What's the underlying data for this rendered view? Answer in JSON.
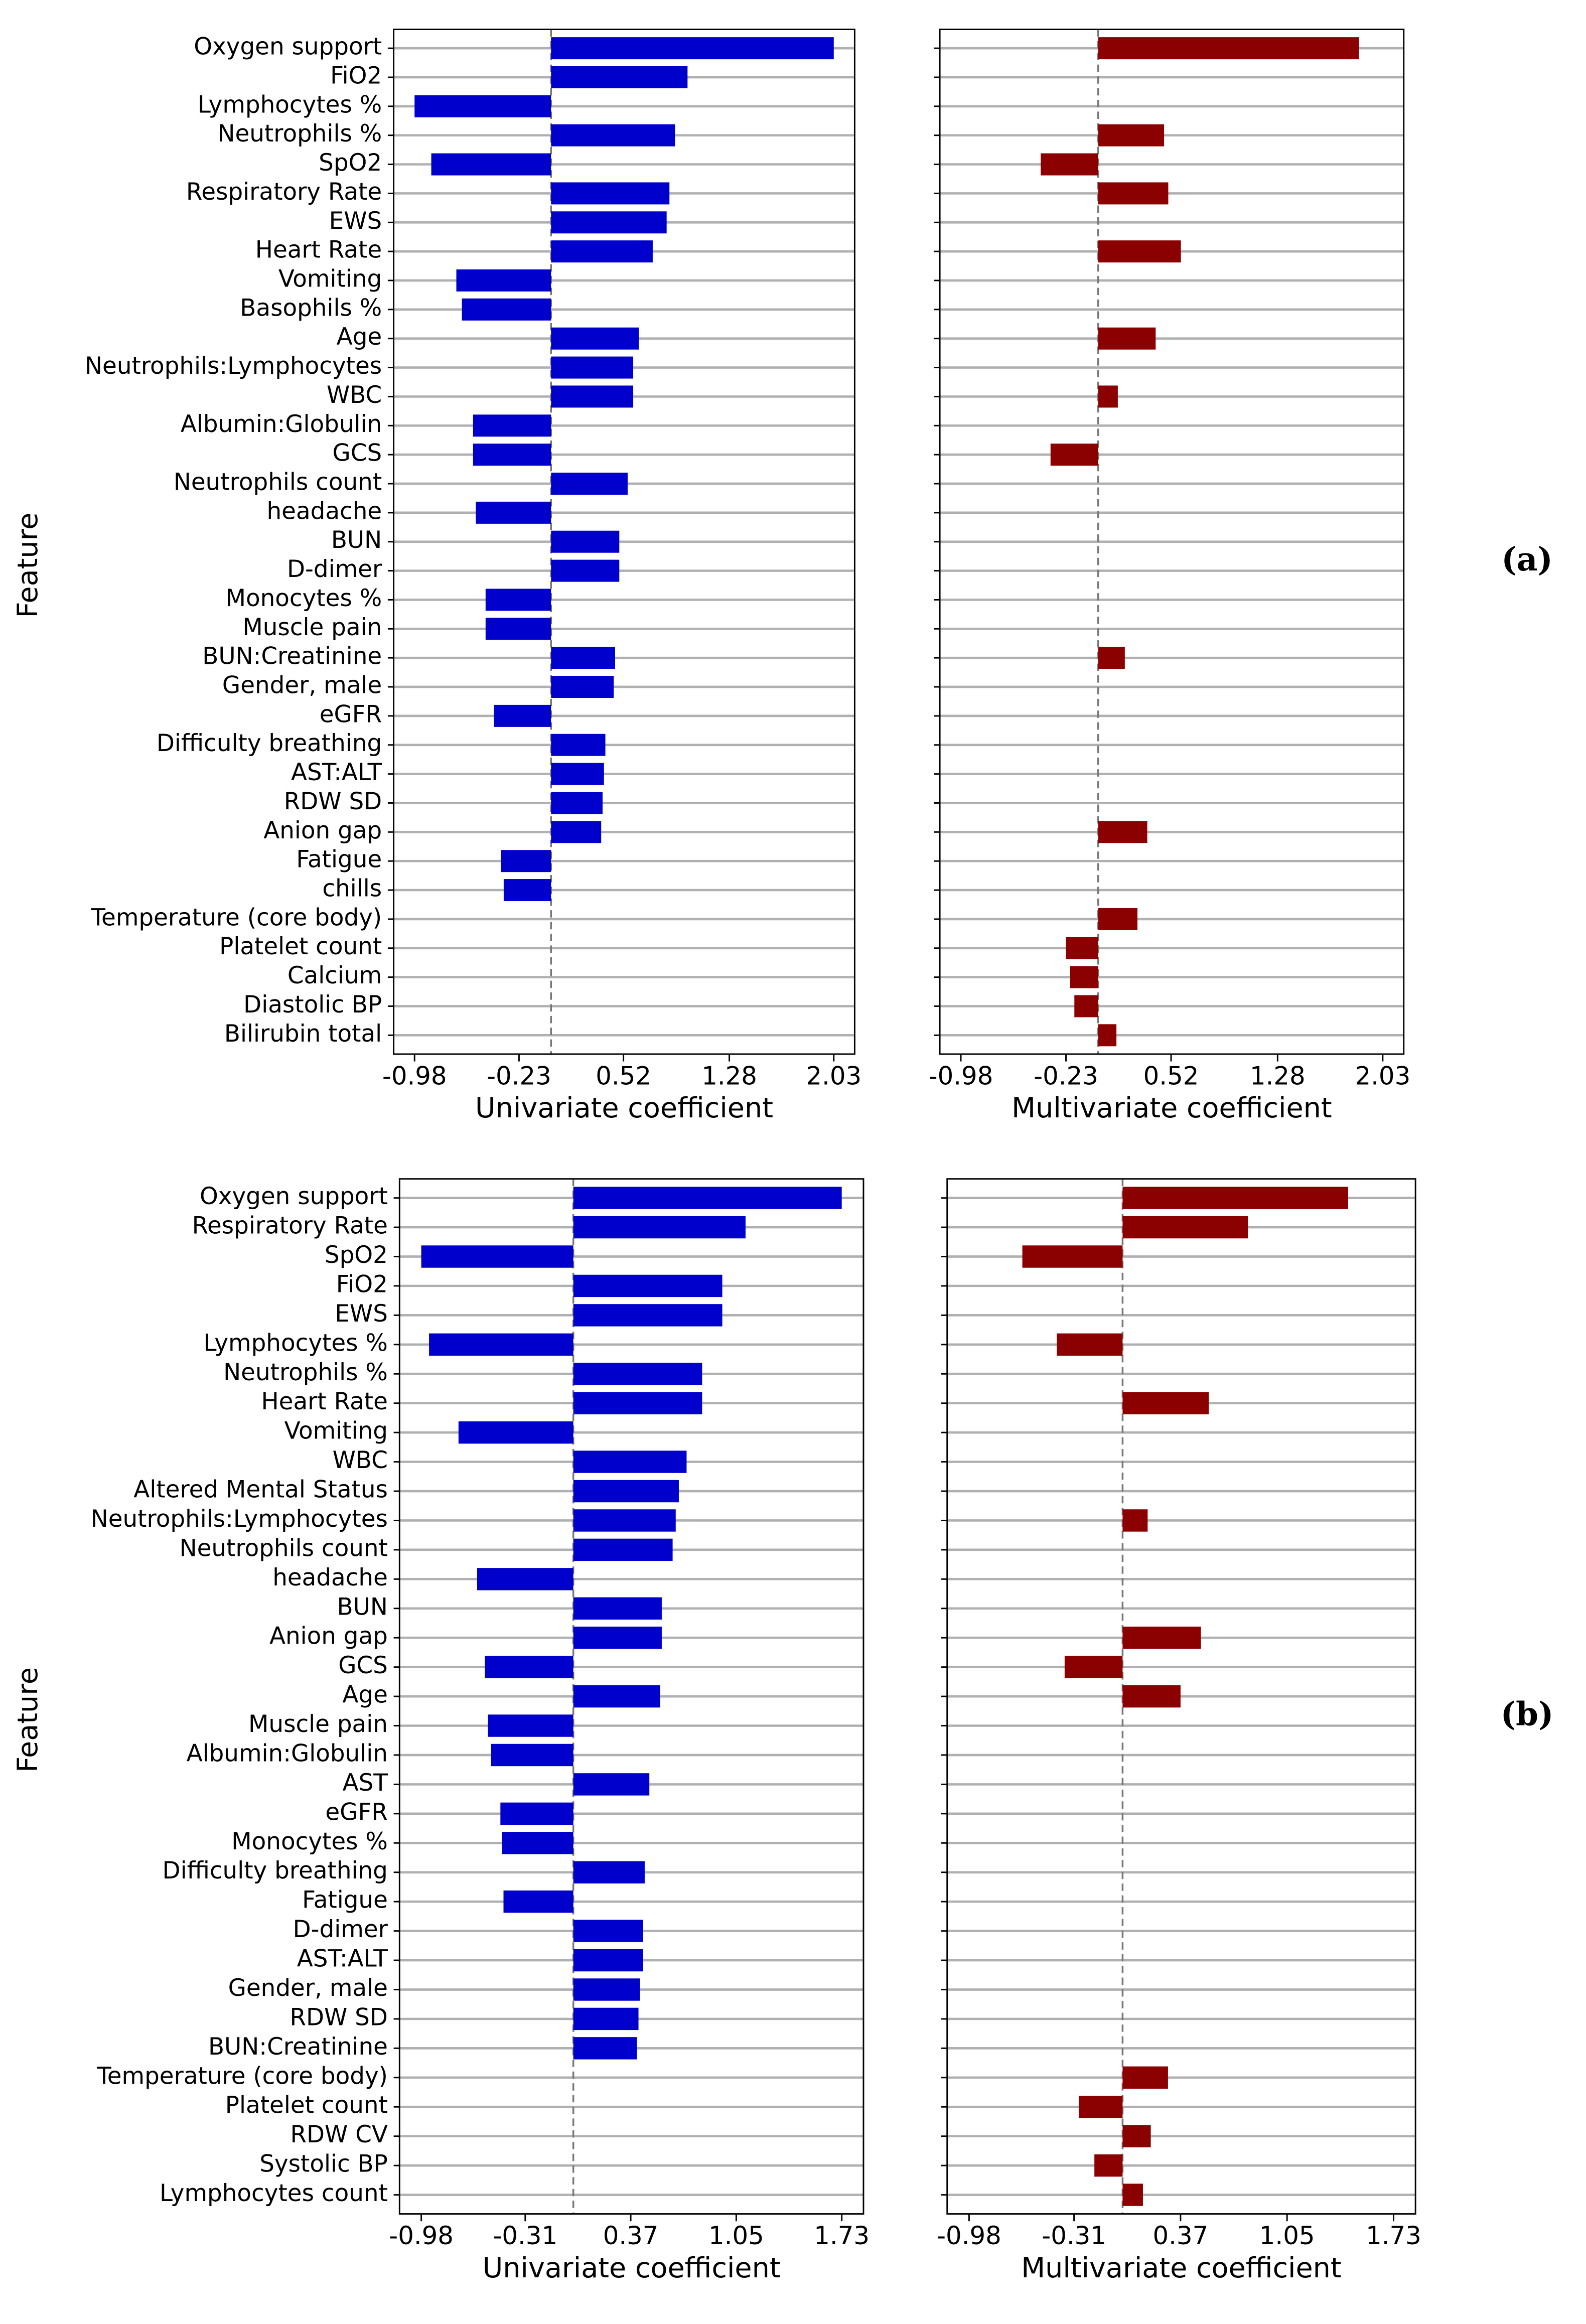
{
  "chart_data": [
    {
      "type": "barh",
      "xlabel": "Univariate coefficient",
      "ylabel": "Feature",
      "color": "#0000cd",
      "grid": true,
      "categories": [
        "Oxygen support",
        "FiO2",
        "Lymphocytes %",
        "Neutrophils %",
        "SpO2",
        "Respiratory Rate",
        "EWS",
        "Heart Rate",
        "Vomiting",
        "Basophils %",
        "Age",
        "Neutrophils:Lymphocytes",
        "WBC",
        "Albumin:Globulin",
        "GCS",
        "Neutrophils count",
        "headache",
        "BUN",
        "D-dimer",
        "Monocytes %",
        "Muscle pain",
        "BUN:Creatinine",
        "Gender, male",
        "eGFR",
        "Difficulty breathing",
        "AST:ALT",
        "RDW SD",
        "Anion gap",
        "Fatigue",
        "chills",
        "Temperature (core body)",
        "Platelet count",
        "Calcium",
        "Diastolic BP",
        "Bilirubin total"
      ],
      "values": [
        2.03,
        0.98,
        -0.98,
        0.89,
        -0.86,
        0.85,
        0.83,
        0.73,
        -0.68,
        -0.64,
        0.63,
        0.59,
        0.59,
        -0.56,
        -0.56,
        0.55,
        -0.54,
        0.49,
        0.49,
        -0.47,
        -0.47,
        0.46,
        0.45,
        -0.41,
        0.39,
        0.38,
        0.37,
        0.36,
        -0.36,
        -0.34,
        null,
        null,
        null,
        null,
        null
      ],
      "xlim": [
        -1.13,
        2.18
      ],
      "xticks": [
        -0.98,
        -0.23,
        0.52,
        1.28,
        2.03
      ]
    },
    {
      "type": "barh",
      "xlabel": "Multivariate coefficient",
      "color": "#8b0000",
      "grid": true,
      "annotation": "(a)",
      "values": [
        1.86,
        null,
        null,
        0.47,
        -0.41,
        0.5,
        null,
        0.59,
        null,
        null,
        0.41,
        null,
        0.14,
        null,
        -0.34,
        null,
        null,
        null,
        null,
        null,
        null,
        0.19,
        null,
        null,
        null,
        null,
        null,
        0.35,
        null,
        null,
        0.28,
        -0.23,
        -0.2,
        -0.17,
        0.13
      ],
      "xlim": [
        -1.13,
        2.18
      ],
      "xticks": [
        -0.98,
        -0.23,
        0.52,
        1.28,
        2.03
      ]
    },
    {
      "type": "barh",
      "xlabel": "Univariate coefficient",
      "ylabel": "Feature",
      "color": "#0000cd",
      "grid": true,
      "categories": [
        "Oxygen support",
        "Respiratory Rate",
        "SpO2",
        "FiO2",
        "EWS",
        "Lymphocytes %",
        "Neutrophils %",
        "Heart Rate",
        "Vomiting",
        "WBC",
        "Altered Mental Status",
        "Neutrophils:Lymphocytes",
        "Neutrophils count",
        "headache",
        "BUN",
        "Anion gap",
        "GCS",
        "Age",
        "Muscle pain",
        "Albumin:Globulin",
        "AST",
        "eGFR",
        "Monocytes %",
        "Difficulty breathing",
        "Fatigue",
        "D-dimer",
        "AST:ALT",
        "Gender, male",
        "RDW SD",
        "BUN:Creatinine",
        "Temperature (core body)",
        "Platelet count",
        "RDW CV",
        "Systolic BP",
        "Lymphocytes count"
      ],
      "values": [
        1.73,
        1.11,
        -0.98,
        0.96,
        0.96,
        -0.93,
        0.83,
        0.83,
        -0.74,
        0.73,
        0.68,
        0.66,
        0.64,
        -0.62,
        0.57,
        0.57,
        -0.57,
        0.56,
        -0.55,
        -0.53,
        0.49,
        -0.47,
        -0.46,
        0.46,
        -0.45,
        0.45,
        0.45,
        0.43,
        0.42,
        0.41,
        null,
        null,
        null,
        null,
        null
      ],
      "xlim": [
        -1.12,
        1.87
      ],
      "xticks": [
        -0.98,
        -0.31,
        0.37,
        1.05,
        1.73
      ]
    },
    {
      "type": "barh",
      "xlabel": "Multivariate coefficient",
      "color": "#8b0000",
      "grid": true,
      "annotation": "(b)",
      "values": [
        1.44,
        0.8,
        -0.64,
        null,
        null,
        -0.42,
        null,
        0.55,
        null,
        null,
        null,
        0.16,
        null,
        null,
        null,
        0.5,
        -0.37,
        0.37,
        null,
        null,
        null,
        null,
        null,
        null,
        null,
        null,
        null,
        null,
        null,
        null,
        0.29,
        -0.28,
        0.18,
        -0.18,
        0.13
      ],
      "xlim": [
        -1.12,
        1.87
      ],
      "xticks": [
        -0.98,
        -0.31,
        0.37,
        1.05,
        1.73
      ]
    }
  ]
}
